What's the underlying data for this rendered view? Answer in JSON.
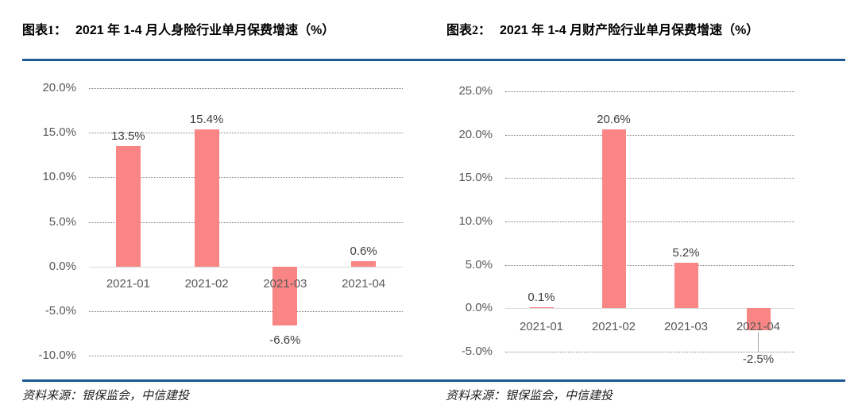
{
  "panels": [
    {
      "title_label": "图表1：",
      "title_text": "2021 年 1-4 月人身险行业单月保费增速（%）",
      "source": "资料来源：银保监会，中信建投"
    },
    {
      "title_label": "图表2：",
      "title_text": "2021 年 1-4 月财产险行业单月保费增速（%）",
      "source": "资料来源：银保监会，中信建投"
    }
  ],
  "chart_data": [
    {
      "type": "bar",
      "title": "图表1：2021 年 1-4 月人身险行业单月保费增速（%）",
      "categories": [
        "2021-01",
        "2021-02",
        "2021-03",
        "2021-04"
      ],
      "values": [
        13.5,
        15.4,
        -6.6,
        0.6
      ],
      "data_labels": [
        "13.5%",
        "15.4%",
        "-6.6%",
        "0.6%"
      ],
      "yticks": [
        20,
        15,
        10,
        5,
        0,
        -5,
        -10
      ],
      "ytick_labels": [
        "20.0%",
        "15.0%",
        "10.0%",
        "5.0%",
        "0.0%",
        "-5.0%",
        "-10.0%"
      ],
      "ylim": [
        -10,
        20
      ],
      "xlabel": "",
      "ylabel": "",
      "legend": "none",
      "grid": "horizontal-dotted",
      "bar_color": "#fa8585"
    },
    {
      "type": "bar",
      "title": "图表2：2021 年 1-4 月财产险行业单月保费增速（%）",
      "categories": [
        "2021-01",
        "2021-02",
        "2021-03",
        "2021-04"
      ],
      "values": [
        0.1,
        20.6,
        5.2,
        -2.5
      ],
      "data_labels": [
        "0.1%",
        "20.6%",
        "5.2%",
        "-2.5%"
      ],
      "yticks": [
        25,
        20,
        15,
        10,
        5,
        0,
        -5
      ],
      "ytick_labels": [
        "25.0%",
        "20.0%",
        "15.0%",
        "10.0%",
        "5.0%",
        "0.0%",
        "-5.0%"
      ],
      "ylim": [
        -5,
        25
      ],
      "xlabel": "",
      "ylabel": "",
      "legend": "none",
      "grid": "horizontal-dotted",
      "bar_color": "#fa8585"
    }
  ],
  "colors": {
    "accent_rule_blue": "#1e5a94",
    "bar_pink": "#fa8585",
    "gridline_gray": "#808080",
    "zero_axis_gray": "#d9d9d9",
    "tick_text_gray": "#595959",
    "data_label_gray": "#3f3f3f"
  }
}
